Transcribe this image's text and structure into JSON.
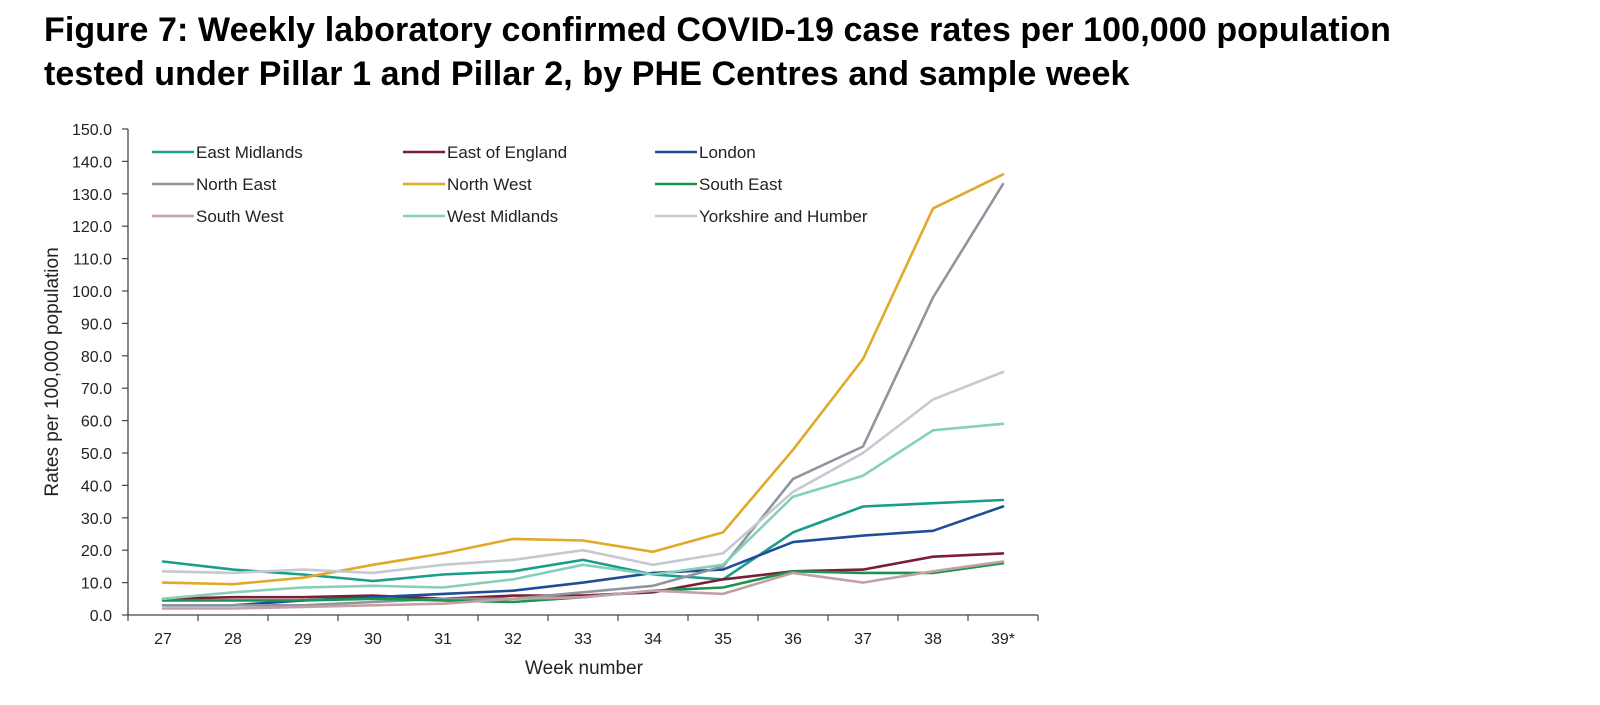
{
  "chart_data": {
    "type": "line",
    "title_lines": [
      "Figure 7: Weekly laboratory confirmed COVID-19 case rates per 100,000 population",
      "tested under Pillar 1 and Pillar 2, by PHE Centres and sample week"
    ],
    "xlabel": "Week number",
    "ylabel": "Rates per 100,000 population",
    "categories": [
      "27",
      "28",
      "29",
      "30",
      "31",
      "32",
      "33",
      "34",
      "35",
      "36",
      "37",
      "38",
      "39*"
    ],
    "ylim": [
      0,
      150
    ],
    "yticks": [
      "0.0",
      "10.0",
      "20.0",
      "30.0",
      "40.0",
      "50.0",
      "60.0",
      "70.0",
      "80.0",
      "90.0",
      "100.0",
      "110.0",
      "120.0",
      "130.0",
      "140.0",
      "150.0"
    ],
    "grid": false,
    "legend_position": "top-left (inside plot, 3 columns)",
    "series": [
      {
        "name": "East Midlands",
        "color": "#1a9e8a",
        "values": [
          16.5,
          14,
          12.5,
          10.5,
          12.5,
          13.5,
          17,
          12.5,
          11,
          25.5,
          33.5,
          34.5,
          35.5
        ]
      },
      {
        "name": "East of England",
        "color": "#7b1f35",
        "values": [
          5,
          5.5,
          5.5,
          6,
          5,
          6,
          6,
          7,
          11,
          13.5,
          14,
          18,
          19
        ]
      },
      {
        "name": "London",
        "color": "#1f4e99",
        "values": [
          3,
          3,
          4.5,
          5.5,
          6.5,
          7.5,
          10,
          13,
          14,
          22.5,
          24.5,
          26,
          33.5
        ]
      },
      {
        "name": "North East",
        "color": "#8f959e",
        "values": [
          3,
          3,
          3,
          4,
          5,
          5,
          7,
          9,
          15,
          42,
          52,
          98,
          133
        ]
      },
      {
        "name": "North West",
        "color": "#e0a92a",
        "values": [
          10,
          9.5,
          11.5,
          15.5,
          19,
          23.5,
          23,
          19.5,
          25.5,
          51,
          79,
          125.5,
          136
        ]
      },
      {
        "name": "South East",
        "color": "#1b9450",
        "values": [
          4.5,
          4.5,
          4.5,
          5,
          4.5,
          4,
          5.5,
          7.5,
          8.5,
          13.5,
          13,
          13,
          16
        ]
      },
      {
        "name": "South West",
        "color": "#c4a0a5",
        "values": [
          2,
          2,
          2.5,
          3,
          3.5,
          5,
          5.5,
          7.5,
          6.5,
          13,
          10,
          13.5,
          16.5
        ]
      },
      {
        "name": "West Midlands",
        "color": "#86cfb8",
        "values": [
          5,
          7,
          8.5,
          9,
          8.5,
          11,
          15.5,
          12.5,
          15.5,
          36.5,
          43,
          57,
          59
        ]
      },
      {
        "name": "Yorkshire and Humber",
        "color": "#c6c9d1",
        "values": [
          13.5,
          13,
          14,
          13,
          15.5,
          17,
          20,
          15.5,
          19,
          38,
          50,
          66.5,
          75
        ]
      }
    ]
  }
}
